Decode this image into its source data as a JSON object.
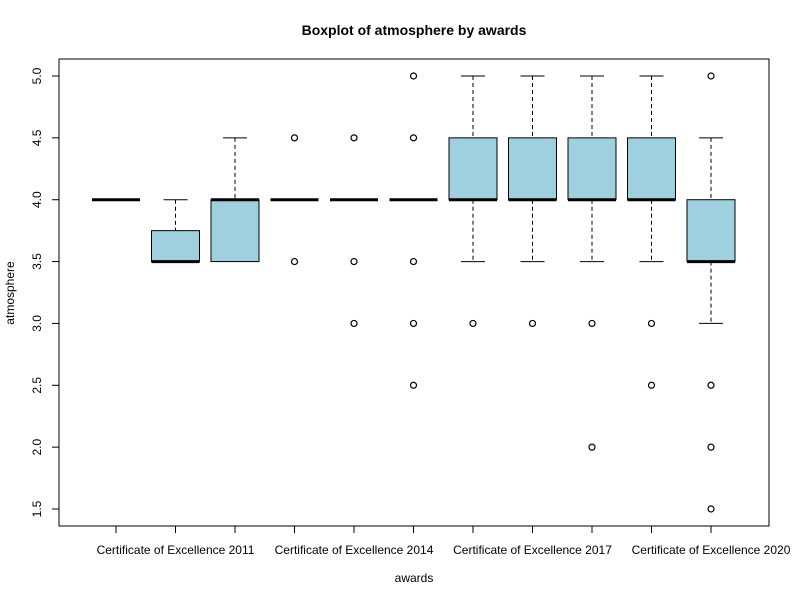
{
  "chart_data": {
    "type": "boxplot",
    "title": "Boxplot of atmosphere by awards",
    "xlabel": "awards",
    "ylabel": "atmosphere",
    "ylim": [
      1.5,
      5.0
    ],
    "y_ticks": [
      "1.5",
      "2.0",
      "2.5",
      "3.0",
      "3.5",
      "4.0",
      "4.5",
      "5.0"
    ],
    "x_tick_labels": [
      {
        "index": 2,
        "label": "Certificate of Excellence 2011"
      },
      {
        "index": 5,
        "label": "Certificate of Excellence 2014"
      },
      {
        "index": 8,
        "label": "Certificate of Excellence 2017"
      },
      {
        "index": 11,
        "label": "Certificate of Excellence 2020"
      }
    ],
    "box_fill": "#9fd0e0",
    "grid": false,
    "boxes": [
      {
        "index": 1,
        "q1": 4.0,
        "median": 4.0,
        "q3": 4.0,
        "whisker_low": 4.0,
        "whisker_high": 4.0,
        "outliers": []
      },
      {
        "index": 2,
        "q1": 3.5,
        "median": 3.5,
        "q3": 3.75,
        "whisker_low": 3.5,
        "whisker_high": 4.0,
        "outliers": []
      },
      {
        "index": 3,
        "q1": 3.5,
        "median": 4.0,
        "q3": 4.0,
        "whisker_low": 3.5,
        "whisker_high": 4.5,
        "outliers": []
      },
      {
        "index": 4,
        "q1": 4.0,
        "median": 4.0,
        "q3": 4.0,
        "whisker_low": 4.0,
        "whisker_high": 4.0,
        "outliers": [
          4.5,
          3.5
        ]
      },
      {
        "index": 5,
        "q1": 4.0,
        "median": 4.0,
        "q3": 4.0,
        "whisker_low": 4.0,
        "whisker_high": 4.0,
        "outliers": [
          4.5,
          3.5,
          3.0
        ]
      },
      {
        "index": 6,
        "q1": 4.0,
        "median": 4.0,
        "q3": 4.0,
        "whisker_low": 4.0,
        "whisker_high": 4.0,
        "outliers": [
          5.0,
          4.5,
          3.5,
          3.0,
          2.5
        ]
      },
      {
        "index": 7,
        "q1": 4.0,
        "median": 4.0,
        "q3": 4.5,
        "whisker_low": 3.5,
        "whisker_high": 5.0,
        "outliers": [
          3.0
        ]
      },
      {
        "index": 8,
        "q1": 4.0,
        "median": 4.0,
        "q3": 4.5,
        "whisker_low": 3.5,
        "whisker_high": 5.0,
        "outliers": [
          3.0
        ]
      },
      {
        "index": 9,
        "q1": 4.0,
        "median": 4.0,
        "q3": 4.5,
        "whisker_low": 3.5,
        "whisker_high": 5.0,
        "outliers": [
          3.0,
          2.0
        ]
      },
      {
        "index": 10,
        "q1": 4.0,
        "median": 4.0,
        "q3": 4.5,
        "whisker_low": 3.5,
        "whisker_high": 5.0,
        "outliers": [
          3.0,
          2.5
        ]
      },
      {
        "index": 11,
        "q1": 3.5,
        "median": 3.5,
        "q3": 4.0,
        "whisker_low": 3.0,
        "whisker_high": 4.5,
        "outliers": [
          5.0,
          2.5,
          2.0,
          1.5
        ]
      }
    ]
  }
}
